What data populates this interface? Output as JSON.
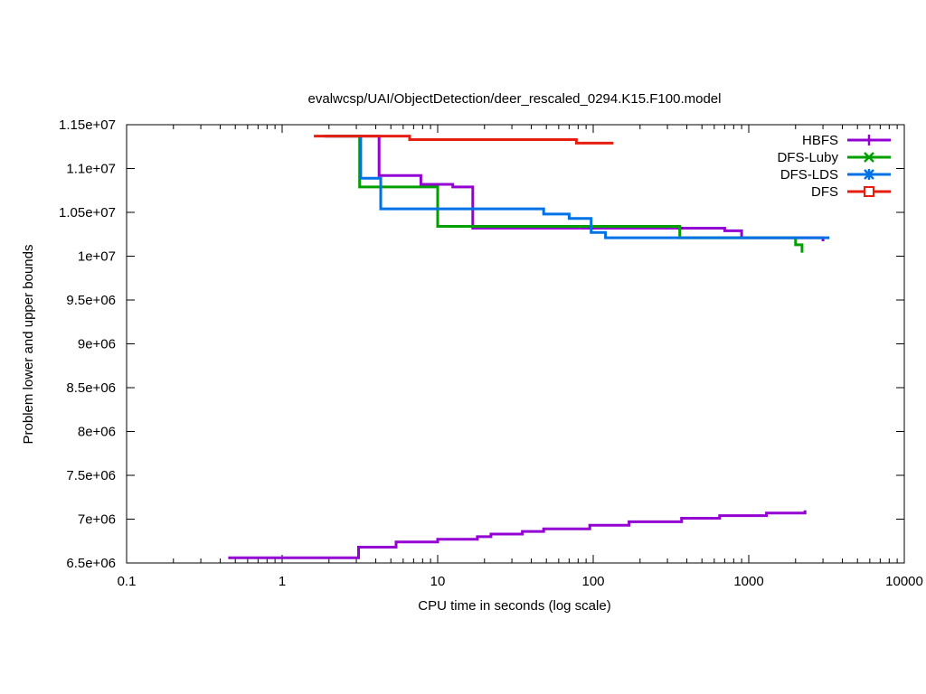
{
  "chart_data": {
    "type": "line",
    "title": "evalwcsp/UAI/ObjectDetection/deer_rescaled_0294.K15.F100.model",
    "xlabel": "CPU time in seconds (log scale)",
    "ylabel": "Problem lower and upper bounds",
    "xscale": "log",
    "xlim": [
      0.1,
      10000
    ],
    "ylim": [
      6500000,
      11500000
    ],
    "x_ticks": [
      {
        "value": 0.1,
        "label": "0.1"
      },
      {
        "value": 1,
        "label": "1"
      },
      {
        "value": 10,
        "label": "10"
      },
      {
        "value": 100,
        "label": "100"
      },
      {
        "value": 1000,
        "label": "1000"
      },
      {
        "value": 10000,
        "label": "10000"
      }
    ],
    "y_ticks": [
      {
        "value": 6500000,
        "label": "6.5e+06"
      },
      {
        "value": 7000000,
        "label": "7e+06"
      },
      {
        "value": 7500000,
        "label": "7.5e+06"
      },
      {
        "value": 8000000,
        "label": "8e+06"
      },
      {
        "value": 8500000,
        "label": "8.5e+06"
      },
      {
        "value": 9000000,
        "label": "9e+06"
      },
      {
        "value": 9500000,
        "label": "9.5e+06"
      },
      {
        "value": 10000000,
        "label": "1e+07"
      },
      {
        "value": 10500000,
        "label": "1.05e+07"
      },
      {
        "value": 11000000,
        "label": "1.1e+07"
      },
      {
        "value": 11500000,
        "label": "1.15e+07"
      }
    ],
    "legend_position": "top-right",
    "grid": false,
    "series": [
      {
        "name": "HBFS",
        "color": "#9400d3",
        "marker": "plus",
        "lines": [
          [
            [
              1.85,
              11370000
            ],
            [
              4.2,
              11370000
            ],
            [
              4.2,
              10920000
            ],
            [
              7.8,
              10920000
            ],
            [
              7.8,
              10820000
            ],
            [
              12.5,
              10820000
            ],
            [
              12.5,
              10790000
            ],
            [
              16.8,
              10790000
            ],
            [
              16.8,
              10320000
            ],
            [
              700,
              10320000
            ],
            [
              700,
              10290000
            ],
            [
              900,
              10290000
            ],
            [
              900,
              10210000
            ],
            [
              3000,
              10210000
            ],
            [
              3000,
              10170000
            ]
          ],
          [
            [
              0.45,
              6560000
            ],
            [
              3.1,
              6560000
            ],
            [
              3.1,
              6680000
            ],
            [
              5.4,
              6680000
            ],
            [
              5.4,
              6740000
            ],
            [
              10,
              6740000
            ],
            [
              10,
              6770000
            ],
            [
              18,
              6770000
            ],
            [
              18,
              6800000
            ],
            [
              22,
              6800000
            ],
            [
              22,
              6830000
            ],
            [
              35,
              6830000
            ],
            [
              35,
              6860000
            ],
            [
              48,
              6860000
            ],
            [
              48,
              6890000
            ],
            [
              95,
              6890000
            ],
            [
              95,
              6930000
            ],
            [
              170,
              6930000
            ],
            [
              170,
              6970000
            ],
            [
              370,
              6970000
            ],
            [
              370,
              7010000
            ],
            [
              650,
              7010000
            ],
            [
              650,
              7040000
            ],
            [
              1300,
              7040000
            ],
            [
              1300,
              7070000
            ],
            [
              2300,
              7070000
            ],
            [
              2300,
              7100000
            ]
          ]
        ]
      },
      {
        "name": "DFS-Luby",
        "color": "#00a000",
        "marker": "x",
        "lines": [
          [
            [
              1.9,
              11370000
            ],
            [
              3.15,
              11370000
            ],
            [
              3.15,
              10790000
            ],
            [
              10,
              10790000
            ],
            [
              10,
              10340000
            ],
            [
              360,
              10340000
            ],
            [
              360,
              10210000
            ],
            [
              2000,
              10210000
            ],
            [
              2000,
              10130000
            ],
            [
              2200,
              10130000
            ],
            [
              2200,
              10040000
            ]
          ]
        ]
      },
      {
        "name": "DFS-LDS",
        "color": "#0072e6",
        "marker": "star",
        "lines": [
          [
            [
              1.9,
              11370000
            ],
            [
              3.2,
              11370000
            ],
            [
              3.2,
              10890000
            ],
            [
              4.3,
              10890000
            ],
            [
              4.3,
              10540000
            ],
            [
              48,
              10540000
            ],
            [
              48,
              10480000
            ],
            [
              70,
              10480000
            ],
            [
              70,
              10430000
            ],
            [
              97,
              10430000
            ],
            [
              97,
              10270000
            ],
            [
              120,
              10270000
            ],
            [
              120,
              10210000
            ],
            [
              3300,
              10210000
            ]
          ]
        ]
      },
      {
        "name": "DFS",
        "color": "#e51e10",
        "marker": "square",
        "lines": [
          [
            [
              1.6,
              11370000
            ],
            [
              6.6,
              11370000
            ],
            [
              6.6,
              11330000
            ],
            [
              78,
              11330000
            ],
            [
              78,
              11290000
            ],
            [
              135,
              11290000
            ]
          ]
        ]
      }
    ]
  }
}
